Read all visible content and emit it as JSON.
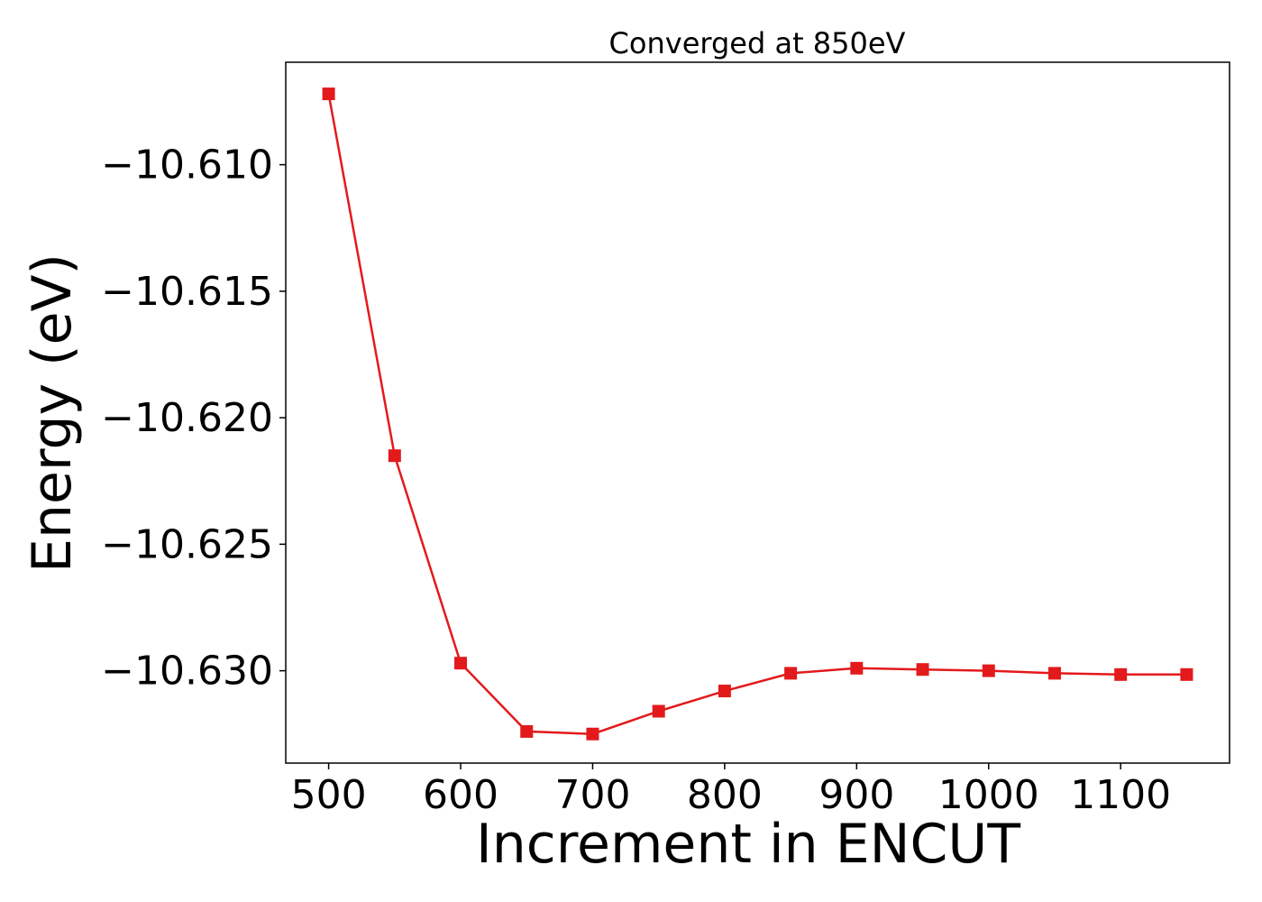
{
  "chart_data": {
    "type": "line",
    "title": "Converged at 850eV",
    "xlabel": "Increment in ENCUT",
    "ylabel": "Energy (eV)",
    "x": [
      500,
      550,
      600,
      650,
      700,
      750,
      800,
      850,
      900,
      950,
      1000,
      1050,
      1100,
      1150
    ],
    "series": [
      {
        "values": [
          -10.6072,
          -10.6215,
          -10.6297,
          -10.6324,
          -10.6325,
          -10.6316,
          -10.6308,
          -10.6301,
          -10.6299,
          -10.62995,
          -10.63,
          -10.6301,
          -10.63015,
          -10.63015
        ],
        "color": "#e31a1c",
        "marker": "square"
      }
    ],
    "xlim": [
      467.5,
      1182.5
    ],
    "ylim": [
      -10.63365,
      -10.60595
    ],
    "xticks": [
      500,
      600,
      700,
      800,
      900,
      1000,
      1100
    ],
    "xtick_labels": [
      "500",
      "600",
      "700",
      "800",
      "900",
      "1000",
      "1100"
    ],
    "yticks": [
      -10.61,
      -10.615,
      -10.62,
      -10.625,
      -10.63
    ],
    "ytick_labels": [
      "−10.610",
      "−10.615",
      "−10.620",
      "−10.625",
      "−10.630"
    ],
    "grid": false,
    "legend": "none"
  }
}
